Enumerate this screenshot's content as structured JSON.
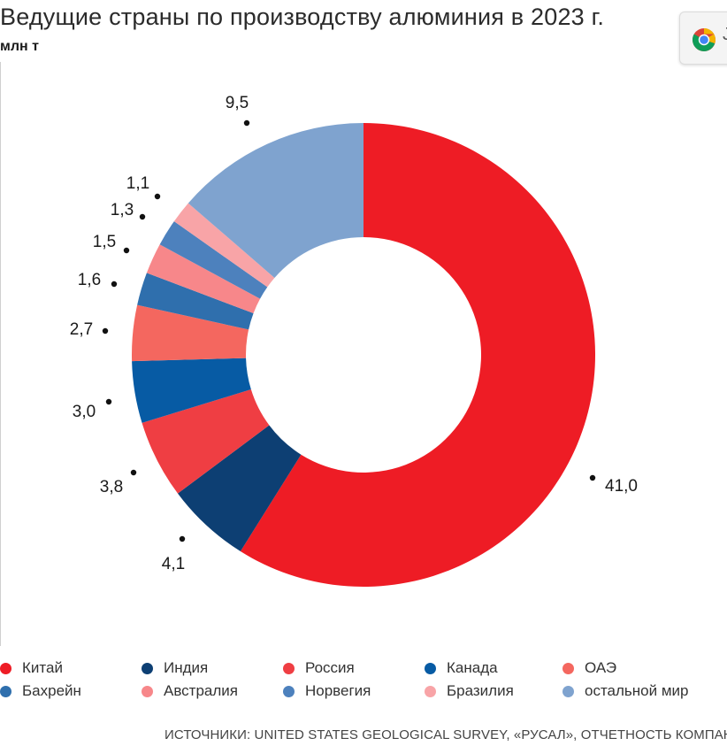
{
  "header": {
    "title": "Ведущие страны по производству алюминия в 2023 г.",
    "unit": "млн т"
  },
  "browser_ext": {
    "icon": "chrome-icon",
    "glyph": "J"
  },
  "chart_data": {
    "type": "donut",
    "title": "Ведущие страны по производству алюминия в 2023 г.",
    "unit": "млн т",
    "series": [
      {
        "name": "Китай",
        "value": 41.0,
        "label": "41,0",
        "color": "#ee1c25"
      },
      {
        "name": "Индия",
        "value": 4.1,
        "label": "4,1",
        "color": "#0d3f73"
      },
      {
        "name": "Россия",
        "value": 3.8,
        "label": "3,8",
        "color": "#ef3e43"
      },
      {
        "name": "Канада",
        "value": 3.0,
        "label": "3,0",
        "color": "#075ba4"
      },
      {
        "name": "ОАЭ",
        "value": 2.7,
        "label": "2,7",
        "color": "#f4675f"
      },
      {
        "name": "Бахрейн",
        "value": 1.6,
        "label": "1,6",
        "color": "#2f6fad"
      },
      {
        "name": "Австралия",
        "value": 1.5,
        "label": "1,5",
        "color": "#f7878a"
      },
      {
        "name": "Норвегия",
        "value": 1.3,
        "label": "1,3",
        "color": "#4d81bd"
      },
      {
        "name": "Бразилия",
        "value": 1.1,
        "label": "1,1",
        "color": "#f8a4a7"
      },
      {
        "name": "остальной мир",
        "value": 9.5,
        "label": "9,5",
        "color": "#7fa3cf"
      }
    ],
    "legend_position": "bottom"
  },
  "footer": {
    "source": "ИСТОЧНИКИ: UNITED STATES GEOLOGICAL SURVEY, «РУСАЛ», ОТЧЕТНОСТЬ КОМПАНИЙ"
  }
}
